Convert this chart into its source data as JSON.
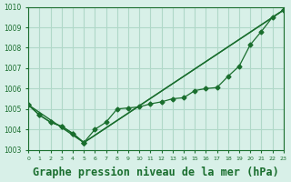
{
  "background_color": "#d8f0e8",
  "grid_color": "#b0d8c8",
  "line_color": "#1a6e2e",
  "xlabel": "Graphe pression niveau de la mer (hPa)",
  "xlabel_fontsize": 8.5,
  "ylim": [
    1003,
    1010
  ],
  "xlim": [
    0,
    23
  ],
  "yticks": [
    1003,
    1004,
    1005,
    1006,
    1007,
    1008,
    1009,
    1010
  ],
  "xticks": [
    0,
    1,
    2,
    3,
    4,
    5,
    6,
    7,
    8,
    9,
    10,
    11,
    12,
    13,
    14,
    15,
    16,
    17,
    18,
    19,
    20,
    21,
    22,
    23
  ],
  "line1_x": [
    0,
    1,
    2,
    3,
    4,
    5,
    6,
    7,
    8,
    9,
    10,
    11,
    12,
    13,
    14,
    15,
    16,
    17,
    18,
    19,
    20,
    21,
    22,
    23
  ],
  "line1_y": [
    1005.2,
    1004.7,
    1004.35,
    1004.15,
    1003.8,
    1003.35,
    1004.0,
    1004.35,
    1005.0,
    1005.05,
    1005.1,
    1005.25,
    1005.35,
    1005.5,
    1005.55,
    1005.9,
    1006.0,
    1006.05,
    1006.6,
    1007.1,
    1008.15,
    1008.8,
    1009.5,
    1009.85
  ],
  "line2_x": [
    0,
    1,
    2,
    3,
    4,
    5,
    23
  ],
  "line2_y": [
    1005.2,
    1004.7,
    1004.35,
    1004.15,
    1003.8,
    1003.35,
    1009.85
  ],
  "line3_x": [
    0,
    5,
    23
  ],
  "line3_y": [
    1005.2,
    1003.35,
    1009.85
  ]
}
